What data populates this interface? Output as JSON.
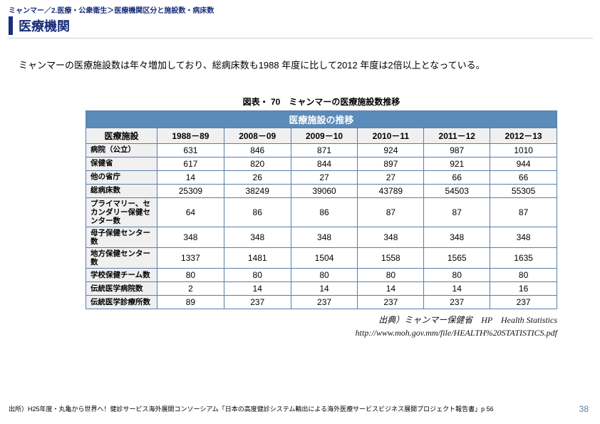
{
  "breadcrumb": "ミャンマー／2.医療・公衆衛生＞医療機関区分と施設数・病床数",
  "title": "医療機関",
  "description": "ミャンマーの医療施設数は年々増加しており、総病床数も1988 年度に比して2012 年度は2倍以上となっている。",
  "table": {
    "caption": "図表・ 70　ミャンマーの医療施設数推移",
    "header_bar": "医療施設の推移",
    "columns": [
      "医療施設",
      "1988－89",
      "2008－09",
      "2009－10",
      "2010－11",
      "2011－12",
      "2012－13"
    ],
    "rows": [
      {
        "label": "病院（公立）",
        "values": [
          "631",
          "846",
          "871",
          "924",
          "987",
          "1010"
        ]
      },
      {
        "label": "保健省",
        "values": [
          "617",
          "820",
          "844",
          "897",
          "921",
          "944"
        ]
      },
      {
        "label": "他の省庁",
        "values": [
          "14",
          "26",
          "27",
          "27",
          "66",
          "66"
        ]
      },
      {
        "label": "総病床数",
        "values": [
          "25309",
          "38249",
          "39060",
          "43789",
          "54503",
          "55305"
        ]
      },
      {
        "label": "プライマリー、セカンダリー保健センター数",
        "values": [
          "64",
          "86",
          "86",
          "87",
          "87",
          "87"
        ]
      },
      {
        "label": "母子保健センター数",
        "values": [
          "348",
          "348",
          "348",
          "348",
          "348",
          "348"
        ]
      },
      {
        "label": "地方保健センター数",
        "values": [
          "1337",
          "1481",
          "1504",
          "1558",
          "1565",
          "1635"
        ]
      },
      {
        "label": "学校保健チーム数",
        "values": [
          "80",
          "80",
          "80",
          "80",
          "80",
          "80"
        ]
      },
      {
        "label": "伝統医学病院数",
        "values": [
          "2",
          "14",
          "14",
          "14",
          "14",
          "16"
        ]
      },
      {
        "label": "伝統医学診療所数",
        "values": [
          "89",
          "237",
          "237",
          "237",
          "237",
          "237"
        ]
      }
    ]
  },
  "source_line1": "出典）ミャンマー保健省　HP　Health Statistics",
  "source_line2": "http://www.moh.gov.mm/file/HEALTH%20STATISTICS.pdf",
  "footer_source": "出所）H25年度・丸亀から世界へ！健診サービス海外展開コンソーシアム「日本の高度健診システム輸出による海外医療サービスビジネス展開プロジェクト報告書」p 56",
  "page_number": "38",
  "colors": {
    "brand": "#1a2e7a",
    "table_header_bg": "#5b8bb8",
    "border": "#5b7da9"
  }
}
